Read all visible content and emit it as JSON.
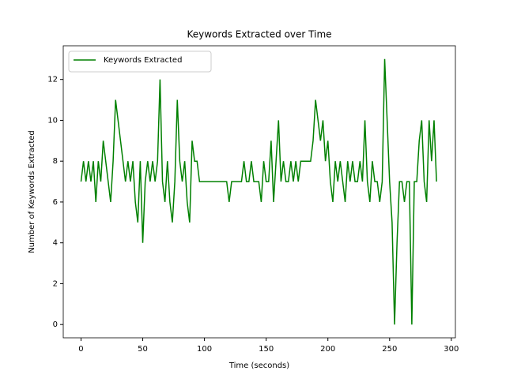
{
  "chart_data": {
    "type": "line",
    "title": "Keywords Extracted over Time",
    "x_label": "Time (seconds)",
    "y_label": "Number of Keywords Extracted",
    "x": [
      0,
      2,
      4,
      6,
      8,
      10,
      12,
      14,
      16,
      18,
      20,
      22,
      24,
      26,
      28,
      30,
      32,
      34,
      36,
      38,
      40,
      42,
      44,
      46,
      48,
      50,
      52,
      54,
      56,
      58,
      60,
      62,
      64,
      66,
      68,
      70,
      72,
      74,
      76,
      78,
      80,
      82,
      84,
      86,
      88,
      90,
      92,
      94,
      96,
      98,
      100,
      102,
      104,
      106,
      108,
      110,
      112,
      114,
      116,
      118,
      120,
      122,
      124,
      126,
      128,
      130,
      132,
      134,
      136,
      138,
      140,
      142,
      144,
      146,
      148,
      150,
      152,
      154,
      156,
      158,
      160,
      162,
      164,
      166,
      168,
      170,
      172,
      174,
      176,
      178,
      180,
      182,
      184,
      186,
      188,
      190,
      192,
      194,
      196,
      198,
      200,
      202,
      204,
      206,
      208,
      210,
      212,
      214,
      216,
      218,
      220,
      222,
      224,
      226,
      228,
      230,
      232,
      234,
      236,
      238,
      240,
      242,
      244,
      246,
      248,
      250,
      252,
      254,
      256,
      258,
      260,
      262,
      264,
      266,
      268,
      270,
      272,
      274,
      276,
      278,
      280,
      282,
      284,
      286,
      288
    ],
    "series": [
      {
        "name": "Keywords Extracted",
        "color": "#008000",
        "values": [
          7,
          8,
          7,
          8,
          7,
          8,
          6,
          8,
          7,
          9,
          8,
          7,
          6,
          8,
          11,
          10,
          9,
          8,
          7,
          8,
          7,
          8,
          6,
          5,
          8,
          4,
          7,
          8,
          7,
          8,
          7,
          8,
          12,
          7,
          6,
          8,
          6,
          5,
          7,
          11,
          8,
          7,
          8,
          6,
          5,
          9,
          8,
          8,
          7,
          7,
          7,
          7,
          7,
          7,
          7,
          7,
          7,
          7,
          7,
          7,
          6,
          7,
          7,
          7,
          7,
          7,
          8,
          7,
          7,
          8,
          7,
          7,
          7,
          6,
          8,
          7,
          7,
          9,
          6,
          8,
          10,
          7,
          8,
          7,
          7,
          8,
          7,
          8,
          7,
          8,
          8,
          8,
          8,
          8,
          9,
          11,
          10,
          9,
          10,
          8,
          9,
          7,
          6,
          8,
          7,
          8,
          7,
          6,
          8,
          7,
          8,
          7,
          7,
          8,
          7,
          10,
          7,
          6,
          8,
          7,
          7,
          6,
          7,
          13,
          10,
          7,
          5,
          0,
          4,
          7,
          7,
          6,
          7,
          7,
          0,
          7,
          7,
          9,
          10,
          7,
          6,
          10,
          8,
          10,
          7
        ]
      }
    ],
    "xlim": [
      -14.4,
      303.3
    ],
    "ylim": [
      -0.65,
      13.65
    ],
    "xticks": [
      0,
      50,
      100,
      150,
      200,
      250,
      300
    ],
    "yticks": [
      0,
      2,
      4,
      6,
      8,
      10,
      12
    ],
    "legend": "upper left"
  }
}
